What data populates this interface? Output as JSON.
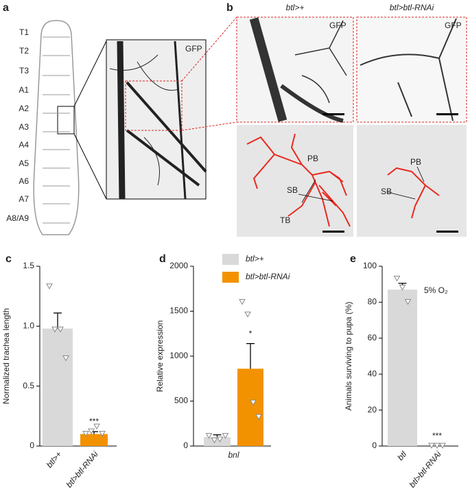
{
  "figure": {
    "panel_a": {
      "letter": "a",
      "segments": [
        "T1",
        "T2",
        "T3",
        "A1",
        "A2",
        "A3",
        "A4",
        "A5",
        "A6",
        "A7",
        "A8/A9"
      ],
      "stain": "GFP"
    },
    "panel_b": {
      "letter": "b",
      "columns": [
        "btl>+",
        "btl>btl-RNAi"
      ],
      "stain": "GFP",
      "branch_labels_left": [
        "PB",
        "SB",
        "TB"
      ],
      "branch_labels_right": [
        "PB",
        "SB"
      ]
    }
  },
  "chart_data": [
    {
      "type": "bar",
      "letter": "c",
      "y_label": "Normalized trachea length",
      "categories": [
        "btl>+",
        "btl>btl-RNAi"
      ],
      "values": [
        0.98,
        0.1
      ],
      "errors": [
        0.13,
        0.02
      ],
      "colors": [
        "#d9d9d9",
        "#f39200"
      ],
      "points": [
        [
          1.33,
          0.97,
          0.97,
          0.73
        ],
        [
          0.1,
          0.12,
          0.16,
          0.1
        ]
      ],
      "significance": [
        null,
        "***"
      ],
      "ylim": [
        0,
        1.5
      ],
      "yticks": [
        0,
        0.5,
        {
          "value": 1,
          "label": "1.0"
        },
        1.5
      ]
    },
    {
      "type": "grouped_bar",
      "letter": "d",
      "y_label": "Relative expression",
      "categories": [
        "bnl"
      ],
      "series": [
        {
          "name": "btl>+",
          "color": "#d9d9d9",
          "values": [
            100
          ],
          "errors": [
            25
          ],
          "points": [
            [
              110,
              60,
              70,
              110
            ]
          ],
          "significance": [
            null
          ]
        },
        {
          "name": "btl>btl-RNAi",
          "color": "#f39200",
          "values": [
            860
          ],
          "errors": [
            280
          ],
          "points": [
            [
              1600,
              1460,
              480,
              320
            ]
          ],
          "significance": [
            "*"
          ]
        }
      ],
      "legend": "top-left",
      "ylim": [
        0,
        2000
      ],
      "yticks": [
        0,
        500,
        1000,
        1500,
        2000
      ]
    },
    {
      "type": "bar",
      "letter": "e",
      "y_label": "Animals surviving to pupa (%)",
      "categories": [
        "btl",
        "btl>btl-RNAi"
      ],
      "values": [
        87,
        0
      ],
      "errors": [
        3.5,
        0
      ],
      "colors": [
        "#d9d9d9",
        "#f39200"
      ],
      "points": [
        [
          93,
          88,
          80
        ],
        [
          0,
          0,
          0
        ]
      ],
      "significance": [
        null,
        "***"
      ],
      "condition": "5% O₂",
      "ylim": [
        0,
        100
      ],
      "yticks": [
        0,
        20,
        40,
        60,
        80,
        100
      ]
    }
  ]
}
